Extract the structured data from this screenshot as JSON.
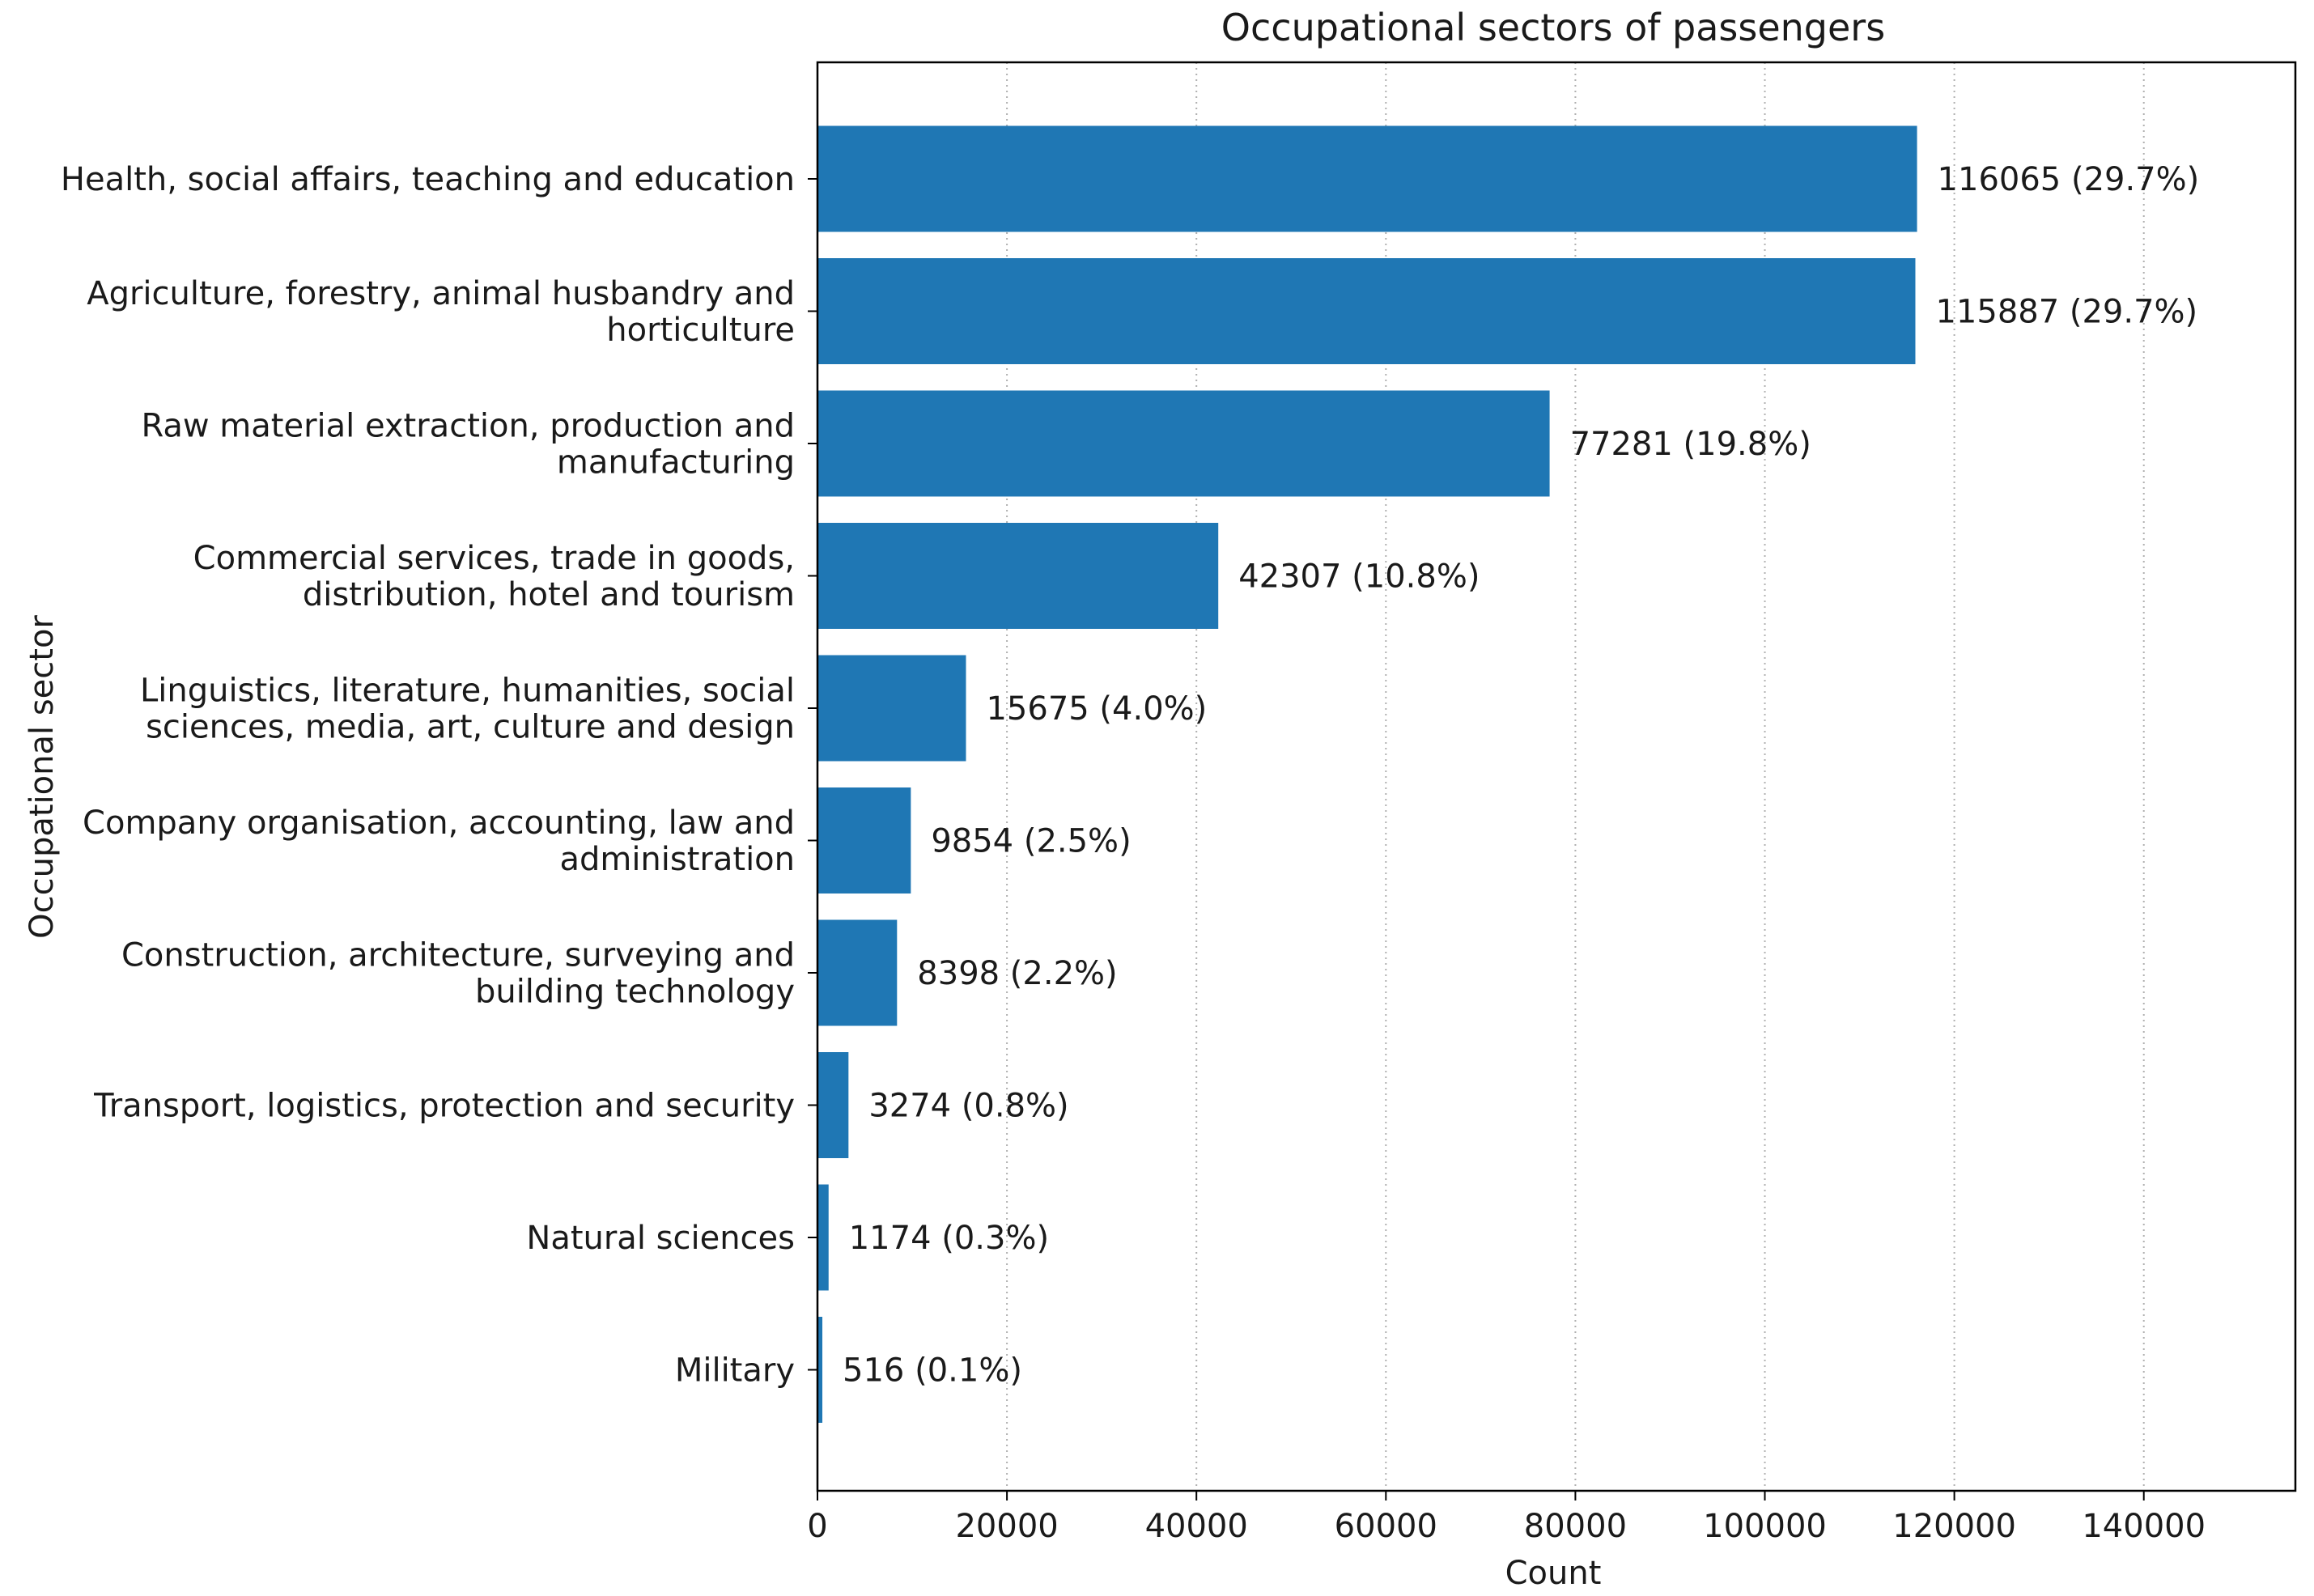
{
  "chart_data": {
    "type": "bar",
    "orientation": "horizontal",
    "title": "Occupational sectors of passengers",
    "xlabel": "Count",
    "ylabel": "Occupational sector",
    "xlim": [
      0,
      156000
    ],
    "xticks": [
      0,
      20000,
      40000,
      60000,
      80000,
      100000,
      120000,
      140000
    ],
    "xtick_labels": [
      "0",
      "20000",
      "40000",
      "60000",
      "80000",
      "100000",
      "120000",
      "140000"
    ],
    "grid": "vertical dotted",
    "bar_color": "#1f77b4",
    "categories": [
      [
        "Health, social affairs, teaching and education"
      ],
      [
        "Agriculture, forestry, animal husbandry and",
        "horticulture"
      ],
      [
        "Raw material extraction, production and",
        "manufacturing"
      ],
      [
        "Commercial services, trade in goods,",
        "distribution, hotel and tourism"
      ],
      [
        "Linguistics, literature, humanities, social",
        "sciences, media, art, culture and design"
      ],
      [
        "Company organisation, accounting, law and",
        "administration"
      ],
      [
        "Construction, architecture, surveying and",
        "building technology"
      ],
      [
        "Transport, logistics, protection and security"
      ],
      [
        "Natural sciences"
      ],
      [
        "Military"
      ]
    ],
    "values": [
      116065,
      115887,
      77281,
      42307,
      15675,
      9854,
      8398,
      3274,
      1174,
      516
    ],
    "data_labels": [
      "116065 (29.7%)",
      "115887 (29.7%)",
      "77281 (19.8%)",
      "42307 (10.8%)",
      "15675 (4.0%)",
      "9854 (2.5%)",
      "8398 (2.2%)",
      "3274 (0.8%)",
      "1174 (0.3%)",
      "516 (0.1%)"
    ]
  }
}
